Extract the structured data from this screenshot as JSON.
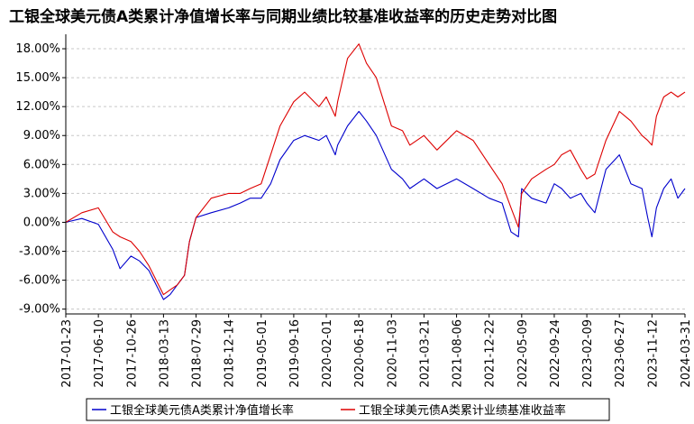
{
  "chart_data": {
    "type": "line",
    "title": "工银全球美元债A类累计净值增长率与同期业绩比较基准收益率的历史走势对比图",
    "xlabel": "",
    "ylabel": "",
    "ylim": [
      -9.5,
      19.5
    ],
    "y_ticks": [
      18,
      15,
      12,
      9,
      6,
      3,
      0,
      -3,
      -6,
      -9
    ],
    "y_tick_labels": [
      "18.00%",
      "15.00%",
      "12.00%",
      "9.00%",
      "6.00%",
      "3.00%",
      "0.00%",
      "-3.00%",
      "-6.00%",
      "-9.00%"
    ],
    "x_tick_labels": [
      "2017-01-23",
      "2017-06-10",
      "2017-10-26",
      "2018-03-13",
      "2018-07-29",
      "2018-12-14",
      "2019-05-01",
      "2019-09-16",
      "2020-02-01",
      "2020-06-18",
      "2020-11-03",
      "2021-03-21",
      "2021-08-06",
      "2021-12-22",
      "2022-05-09",
      "2022-09-24",
      "2023-02-09",
      "2023-06-27",
      "2023-11-12",
      "2024-03-31"
    ],
    "grid": true,
    "legend_position": "bottom",
    "x": [
      "2017-01-23",
      "2017-04-01",
      "2017-06-10",
      "2017-08-10",
      "2017-09-10",
      "2017-10-26",
      "2017-12-01",
      "2018-01-10",
      "2018-02-10",
      "2018-03-13",
      "2018-04-10",
      "2018-05-10",
      "2018-06-10",
      "2018-07-01",
      "2018-07-29",
      "2018-10-01",
      "2018-12-14",
      "2019-02-01",
      "2019-03-15",
      "2019-05-01",
      "2019-06-10",
      "2019-07-20",
      "2019-09-16",
      "2019-11-01",
      "2020-01-01",
      "2020-02-01",
      "2020-03-10",
      "2020-03-20",
      "2020-05-01",
      "2020-06-18",
      "2020-07-20",
      "2020-08-31",
      "2020-11-03",
      "2020-12-20",
      "2021-01-20",
      "2021-03-21",
      "2021-05-15",
      "2021-08-06",
      "2021-10-15",
      "2021-12-22",
      "2022-02-15",
      "2022-03-25",
      "2022-04-25",
      "2022-05-09",
      "2022-06-20",
      "2022-08-20",
      "2022-09-24",
      "2022-10-25",
      "2022-12-01",
      "2023-01-15",
      "2023-02-09",
      "2023-03-15",
      "2023-05-01",
      "2023-06-27",
      "2023-08-15",
      "2023-10-01",
      "2023-10-25",
      "2023-11-12",
      "2023-12-01",
      "2024-01-01",
      "2024-02-01",
      "2024-03-01",
      "2024-03-31"
    ],
    "series": [
      {
        "name": "工银全球美元债A类累计净值增长率",
        "color": "#0000cc",
        "values": [
          0.0,
          0.4,
          -0.2,
          -2.8,
          -4.8,
          -3.5,
          -4.0,
          -5.0,
          -6.5,
          -8.0,
          -7.5,
          -6.5,
          -5.5,
          -2.0,
          0.5,
          1.0,
          1.5,
          2.0,
          2.5,
          2.5,
          4.0,
          6.5,
          8.5,
          9.0,
          8.5,
          9.0,
          7.0,
          8.0,
          10.0,
          11.5,
          10.5,
          9.0,
          5.5,
          4.5,
          3.5,
          4.5,
          3.5,
          4.5,
          3.5,
          2.5,
          2.0,
          -1.0,
          -1.5,
          3.5,
          2.5,
          2.0,
          4.0,
          3.5,
          2.5,
          3.0,
          2.0,
          1.0,
          5.5,
          7.0,
          4.0,
          3.5,
          0.5,
          -1.5,
          1.5,
          3.5,
          4.5,
          2.5,
          3.5
        ]
      },
      {
        "name": "工银全球美元债A类累计业绩基准收益率",
        "color": "#dd0000",
        "values": [
          0.0,
          1.0,
          1.5,
          -1.0,
          -1.5,
          -2.0,
          -3.0,
          -4.5,
          -6.0,
          -7.5,
          -7.0,
          -6.5,
          -5.5,
          -2.0,
          0.5,
          2.5,
          3.0,
          3.0,
          3.5,
          4.0,
          7.0,
          10.0,
          12.5,
          13.5,
          12.0,
          13.0,
          11.0,
          12.5,
          17.0,
          18.5,
          16.5,
          15.0,
          10.0,
          9.5,
          8.0,
          9.0,
          7.5,
          9.5,
          8.5,
          6.0,
          4.0,
          1.5,
          -0.5,
          3.0,
          4.5,
          5.5,
          6.0,
          7.0,
          7.5,
          5.5,
          4.5,
          5.0,
          8.5,
          11.5,
          10.5,
          9.0,
          8.5,
          8.0,
          11.0,
          13.0,
          13.5,
          13.0,
          13.5
        ]
      }
    ]
  }
}
